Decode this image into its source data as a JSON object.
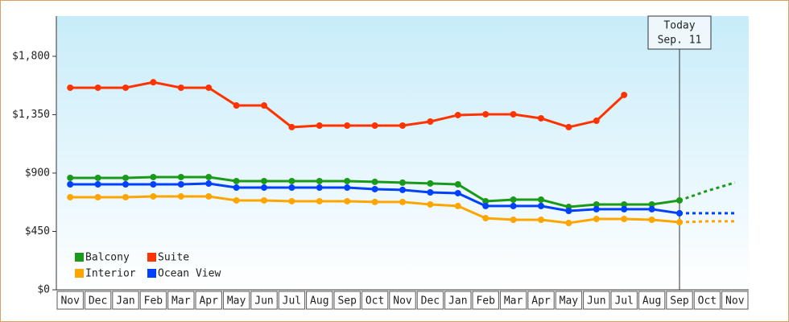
{
  "chart_data": {
    "type": "line",
    "categories": [
      "Nov",
      "Dec",
      "Jan",
      "Feb",
      "Mar",
      "Apr",
      "May",
      "Jun",
      "Jul",
      "Aug",
      "Sep",
      "Oct",
      "Nov",
      "Dec",
      "Jan",
      "Feb",
      "Mar",
      "Apr",
      "May",
      "Jun",
      "Jul",
      "Aug",
      "Sep",
      "Oct",
      "Nov"
    ],
    "series": [
      {
        "name": "Balcony",
        "color": "#1a9a1a",
        "values": [
          863,
          863,
          863,
          869,
          869,
          869,
          838,
          838,
          838,
          838,
          838,
          832,
          826,
          820,
          813,
          683,
          695,
          695,
          639,
          658,
          658,
          658,
          689,
          763,
          826
        ]
      },
      {
        "name": "Suite",
        "color": "#ff3300",
        "values": [
          1558,
          1558,
          1558,
          1600,
          1558,
          1558,
          1421,
          1421,
          1254,
          1266,
          1266,
          1266,
          1266,
          1297,
          1347,
          1353,
          1353,
          1322,
          1254,
          1303,
          1502,
          null,
          null,
          null,
          null
        ]
      },
      {
        "name": "Interior",
        "color": "#ffa500",
        "values": [
          714,
          714,
          714,
          720,
          720,
          720,
          689,
          689,
          683,
          683,
          683,
          677,
          677,
          658,
          646,
          552,
          540,
          540,
          515,
          546,
          546,
          540,
          521,
          528,
          528
        ]
      },
      {
        "name": "Ocean View",
        "color": "#0040ff",
        "values": [
          813,
          813,
          813,
          813,
          813,
          819,
          788,
          788,
          788,
          788,
          788,
          776,
          770,
          751,
          745,
          646,
          646,
          646,
          608,
          621,
          621,
          621,
          590,
          590,
          590
        ]
      }
    ],
    "ylim": [
      0,
      2110
    ],
    "yticks": [
      {
        "value": 0,
        "label": "$0"
      },
      {
        "value": 450,
        "label": "$450"
      },
      {
        "value": 900,
        "label": "$900"
      },
      {
        "value": 1350,
        "label": "$1,350"
      },
      {
        "value": 1800,
        "label": "$1,800"
      }
    ],
    "grid": false,
    "legend": "lower-left",
    "annotation": {
      "lines": [
        "Today",
        "Sep. 11"
      ],
      "at": "Sep"
    }
  }
}
